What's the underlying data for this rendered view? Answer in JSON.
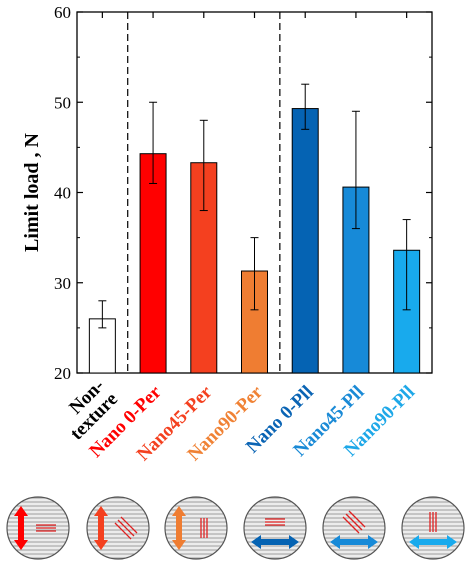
{
  "chart_data": {
    "type": "bar",
    "title": "",
    "xlabel": "",
    "ylabel": "Limit load , N",
    "ylim": [
      20,
      60
    ],
    "yticks": [
      20,
      30,
      40,
      50,
      60
    ],
    "grid": false,
    "legend": "none",
    "categories": [
      {
        "lines": [
          "Non-",
          "texture"
        ],
        "color": "#000000"
      },
      {
        "lines": [
          "Nano 0-Per"
        ],
        "color": "#ff0000"
      },
      {
        "lines": [
          "Nano45-Per"
        ],
        "color": "#f4401f"
      },
      {
        "lines": [
          "Nano90-Per"
        ],
        "color": "#f08235"
      },
      {
        "lines": [
          "Nano 0-Pll"
        ],
        "color": "#0a64b4"
      },
      {
        "lines": [
          "Nano45-Pll"
        ],
        "color": "#1a8ad6"
      },
      {
        "lines": [
          "Nano90-Pll"
        ],
        "color": "#1ea8e8"
      }
    ],
    "values": [
      26,
      44.3,
      43.3,
      31.3,
      49.3,
      40.6,
      33.6
    ],
    "err_low": [
      25,
      41,
      38,
      27,
      47,
      36,
      27
    ],
    "err_high": [
      28,
      50,
      48,
      35,
      52,
      49,
      37
    ],
    "bar_colors": [
      "#ffffff",
      "#ff0000",
      "#f4401f",
      "#ef7d32",
      "#0563b3",
      "#178ad8",
      "#18aaed"
    ],
    "group_separators_after": [
      1,
      4
    ]
  },
  "diagrams": [
    {
      "arrow": "vertical",
      "arrow_color": "#ff0000",
      "lines_angle": 0
    },
    {
      "arrow": "vertical",
      "arrow_color": "#f4401f",
      "lines_angle": 45
    },
    {
      "arrow": "vertical",
      "arrow_color": "#ef7d32",
      "lines_angle": 90
    },
    {
      "arrow": "horizontal",
      "arrow_color": "#0563b3",
      "lines_angle": 0
    },
    {
      "arrow": "horizontal",
      "arrow_color": "#178ad8",
      "lines_angle": 45
    },
    {
      "arrow": "horizontal",
      "arrow_color": "#18aaed",
      "lines_angle": 90
    }
  ]
}
